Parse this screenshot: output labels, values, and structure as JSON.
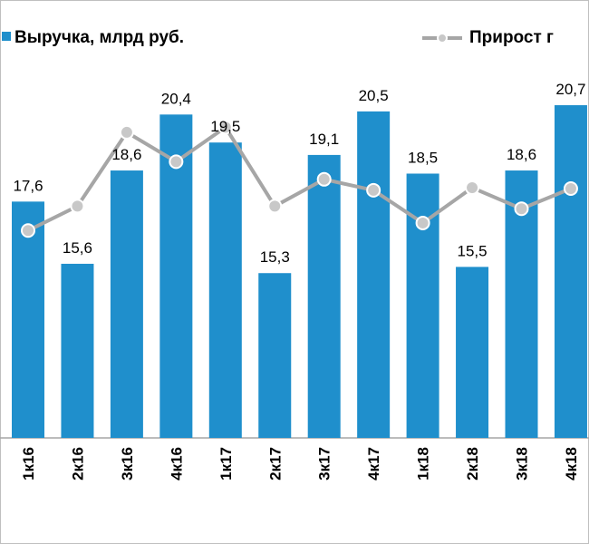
{
  "chart_data": {
    "type": "bar",
    "categories": [
      "1к16",
      "2к16",
      "3к16",
      "4к16",
      "1к17",
      "2к17",
      "3к17",
      "4к17",
      "1к18",
      "2к18",
      "3к18",
      "4к18"
    ],
    "series": [
      {
        "name": "Выручка, млрд руб.",
        "color": "#1f8fcc",
        "values": [
          17.6,
          15.6,
          18.6,
          20.4,
          19.5,
          15.3,
          19.1,
          20.5,
          18.5,
          15.5,
          18.6,
          20.7
        ],
        "value_labels": [
          "17,6",
          "15,6",
          "18,6",
          "20,4",
          "19,5",
          "15,3",
          "19,1",
          "20,5",
          "18,5",
          "15,5",
          "18,6",
          "20,7"
        ]
      },
      {
        "name": "Прирост г",
        "color": "#a6a6a6",
        "type": "line",
        "axis": "y2",
        "values": [
          -5.3,
          -2.4,
          6.4,
          2.9,
          7.0,
          -2.4,
          0.8,
          -0.5,
          -4.4,
          -0.2,
          -2.7,
          -0.3
        ]
      }
    ],
    "ylim": [
      10,
      23.5
    ],
    "y2lim": [
      -30,
      20
    ],
    "legend": "top"
  }
}
